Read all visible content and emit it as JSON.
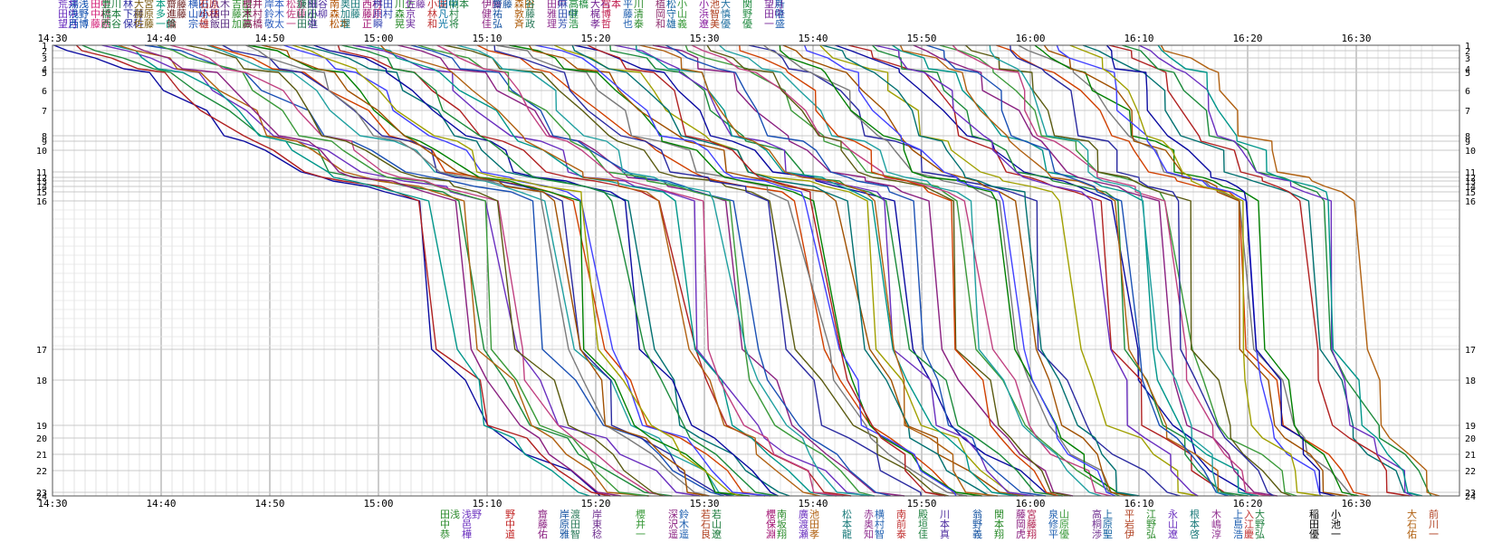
{
  "chart_data": {
    "type": "line",
    "title": "",
    "xlabel": "",
    "ylabel": "",
    "x_range": [
      "14:30",
      "16:37"
    ],
    "y_range": [
      1,
      24
    ],
    "grid": true,
    "x_ticks": [
      "14:30",
      "14:40",
      "14:50",
      "15:00",
      "15:10",
      "15:20",
      "15:30",
      "15:40",
      "15:50",
      "16:00",
      "16:10",
      "16:20",
      "16:30"
    ],
    "checkpoints": [
      "1",
      "2",
      "3",
      "4",
      "5",
      "6",
      "7",
      "8",
      "9",
      "10",
      "11",
      "12",
      "13",
      "14",
      "15",
      "16",
      "17",
      "18",
      "19",
      "20",
      "21",
      "22",
      "23",
      "24"
    ],
    "checkpoint_labels": [
      "1",
      "2",
      "3",
      "4",
      "5",
      "6",
      "7",
      "8",
      "9",
      "10",
      "11",
      "12",
      "13",
      "14",
      "15",
      "16",
      "17",
      "18",
      "19",
      "20",
      "21",
      "22",
      "23",
      "24"
    ],
    "top_names": [
      {
        "time": "14:30",
        "lines": [
          "荒井",
          "田中",
          "望月"
        ],
        "color": "#6a2fbf"
      },
      {
        "time": "14:31",
        "lines": [
          "湯浅",
          "浅野",
          "西博"
        ],
        "color": "#0044aa"
      },
      {
        "time": "14:33",
        "lines": [
          "田中",
          "中村",
          "藤原"
        ],
        "color": "#d4237a"
      },
      {
        "time": "14:34",
        "lines": [
          "豊川",
          "橋本",
          "西谷"
        ],
        "color": "#1a7a3a"
      },
      {
        "time": "14:36",
        "lines": [
          "林",
          "下村",
          "保科"
        ],
        "color": "#2a2aa0"
      },
      {
        "time": "14:37",
        "lines": [
          "大宮",
          "藤原",
          "佐藤"
        ],
        "color": "#7a5a10"
      },
      {
        "time": "14:39",
        "lines": [
          "本",
          "多",
          "一郎"
        ],
        "color": "#00967a"
      },
      {
        "time": "14:40",
        "lines": [
          "齋藤",
          "進藤",
          "倫"
        ],
        "color": "#6b1f1f"
      },
      {
        "time": "14:42",
        "lines": [
          "横田",
          "山崎",
          "宗一"
        ],
        "color": "#1a50b4"
      },
      {
        "time": "14:43",
        "lines": [
          "石原",
          "小林",
          "雄"
        ],
        "color": "#b02020"
      },
      {
        "time": "14:44",
        "lines": [
          "八木",
          "田中",
          "飯田"
        ],
        "color": "#5a2d82"
      },
      {
        "time": "14:46",
        "lines": [
          "吉田",
          "藤澤",
          "加藤"
        ],
        "color": "#2f8f2f"
      },
      {
        "time": "14:47",
        "lines": [
          "櫻井",
          "木村",
          "高橋"
        ],
        "color": "#8a1a5a"
      },
      {
        "time": "14:49",
        "lines": [
          "岸本",
          "鈴木",
          "敬太"
        ],
        "color": "#3060c0"
      },
      {
        "time": "14:51",
        "lines": [
          "松永",
          "佐藤",
          "一"
        ],
        "color": "#c04080"
      },
      {
        "time": "14:52",
        "lines": [
          "鎌田",
          "山田",
          "田中"
        ],
        "color": "#207050"
      },
      {
        "time": "14:53",
        "lines": [
          "細谷",
          "小柳",
          "進"
        ],
        "color": "#5030a0"
      },
      {
        "time": "14:55",
        "lines": [
          "南",
          "森",
          "松本"
        ],
        "color": "#b05000"
      },
      {
        "time": "14:56",
        "lines": [
          "奥田",
          "加藤",
          "理"
        ],
        "color": "#1a7a7a"
      },
      {
        "time": "14:58",
        "lines": [
          "西村",
          "藤原",
          "正"
        ],
        "color": "#a01070"
      },
      {
        "time": "14:59",
        "lines": [
          "桝田",
          "川村",
          "瞬"
        ],
        "color": "#3040b0"
      },
      {
        "time": "15:01",
        "lines": [
          "川上",
          "森",
          "晃"
        ],
        "color": "#2a8a2a"
      },
      {
        "time": "15:02",
        "lines": [
          "佐藤",
          "京",
          "実"
        ],
        "color": "#7030a0"
      },
      {
        "time": "15:04",
        "lines": [
          "小堀",
          "林",
          "和"
        ],
        "color": "#c03030"
      },
      {
        "time": "15:05",
        "lines": [
          "田中",
          "凡",
          "光"
        ],
        "color": "#0070a0"
      },
      {
        "time": "15:06",
        "lines": [
          "岡本",
          "村",
          "将"
        ],
        "color": "#208040"
      },
      {
        "time": "15:09",
        "lines": [
          "伊藤",
          "健",
          "佳"
        ],
        "color": "#8a2080"
      },
      {
        "time": "15:10",
        "lines": [
          "齋藤",
          "祐",
          "弘"
        ],
        "color": "#1050a0"
      },
      {
        "time": "15:12",
        "lines": [
          "森田",
          "敦",
          "斉"
        ],
        "color": "#b06010"
      },
      {
        "time": "15:13",
        "lines": [
          "谷",
          "藤",
          "政"
        ],
        "color": "#2a7a5a"
      },
      {
        "time": "15:15",
        "lines": [
          "田中",
          "雅",
          "理"
        ],
        "color": "#903090"
      },
      {
        "time": "15:16",
        "lines": [
          "麻",
          "田中",
          "芳"
        ],
        "color": "#3050b0"
      },
      {
        "time": "15:17",
        "lines": [
          "高橋",
          "健",
          "浩"
        ],
        "color": "#1a8a3a"
      },
      {
        "time": "15:19",
        "lines": [
          "大石",
          "梶",
          "孝"
        ],
        "color": "#702090"
      },
      {
        "time": "15:20",
        "lines": [
          "宮本",
          "博",
          "哲"
        ],
        "color": "#c02050"
      },
      {
        "time": "15:22",
        "lines": [
          "平",
          "藤",
          "也"
        ],
        "color": "#2060b0"
      },
      {
        "time": "15:23",
        "lines": [
          "川",
          "清",
          "泰"
        ],
        "color": "#2a8a2a"
      },
      {
        "time": "15:25",
        "lines": [
          "植",
          "岡",
          "和"
        ],
        "color": "#903070"
      },
      {
        "time": "15:26",
        "lines": [
          "松",
          "守",
          "雄"
        ],
        "color": "#1060a0"
      },
      {
        "time": "15:27",
        "lines": [
          "小",
          "山",
          "義"
        ],
        "color": "#3a9a3a"
      },
      {
        "time": "15:29",
        "lines": [
          "小",
          "浜",
          "遼"
        ],
        "color": "#8a20a0"
      },
      {
        "time": "15:30",
        "lines": [
          "池",
          "智",
          "美"
        ],
        "color": "#b04020"
      },
      {
        "time": "15:31",
        "lines": [
          "大",
          "慎",
          "優"
        ],
        "color": "#2070a0"
      },
      {
        "time": "15:33",
        "lines": [
          "関",
          "野",
          "優"
        ],
        "color": "#208a40"
      },
      {
        "time": "15:35",
        "lines": [
          "望月",
          "田中",
          "一"
        ],
        "color": "#7a2a9a"
      },
      {
        "time": "15:36",
        "lines": [
          "新",
          "隆",
          "盛"
        ],
        "color": "#2060b0"
      }
    ],
    "bottom_names": [
      {
        "time": "15:06",
        "lines": [
          "田浅",
          "中",
          "恭"
        ],
        "color": "#2a8a2a"
      },
      {
        "time": "15:08",
        "lines": [
          "浅野",
          "邑",
          "樺"
        ],
        "color": "#6a2fbf"
      },
      {
        "time": "15:12",
        "lines": [
          "野",
          "中",
          "道"
        ],
        "color": "#c02020"
      },
      {
        "time": "15:15",
        "lines": [
          "齋",
          "藤",
          "佑"
        ],
        "color": "#8a2080"
      },
      {
        "time": "15:17",
        "lines": [
          "岸",
          "原",
          "雅"
        ],
        "color": "#1050a0"
      },
      {
        "time": "15:18",
        "lines": [
          "渡",
          "田",
          "智"
        ],
        "color": "#2a7a5a"
      },
      {
        "time": "15:20",
        "lines": [
          "岸",
          "東",
          "稔"
        ],
        "color": "#703090"
      },
      {
        "time": "15:24",
        "lines": [
          "櫻",
          "井",
          "一"
        ],
        "color": "#3a9a3a"
      },
      {
        "time": "15:27",
        "lines": [
          "深",
          "沢",
          "遥"
        ],
        "color": "#8a2080"
      },
      {
        "time": "15:28",
        "lines": [
          "鈴",
          "木",
          "遥"
        ],
        "color": "#2060b0"
      },
      {
        "time": "15:30",
        "lines": [
          "若",
          "石",
          "良"
        ],
        "color": "#b04020"
      },
      {
        "time": "15:31",
        "lines": [
          "若",
          "山",
          "遼"
        ],
        "color": "#1a7a3a"
      },
      {
        "time": "15:36",
        "lines": [
          "櫻",
          "保",
          "淵"
        ],
        "color": "#a01070"
      },
      {
        "time": "15:37",
        "lines": [
          "南",
          "坂",
          "翔"
        ],
        "color": "#2a8a2a"
      },
      {
        "time": "15:39",
        "lines": [
          "廣",
          "渡",
          "瀬"
        ],
        "color": "#6a2fbf"
      },
      {
        "time": "15:40",
        "lines": [
          "池",
          "田",
          "孝"
        ],
        "color": "#b06010"
      },
      {
        "time": "15:43",
        "lines": [
          "松",
          "本",
          "龍"
        ],
        "color": "#1a7a7a"
      },
      {
        "time": "15:45",
        "lines": [
          "赤",
          "奥",
          "知"
        ],
        "color": "#903090"
      },
      {
        "time": "15:46",
        "lines": [
          "横",
          "村",
          "智"
        ],
        "color": "#2060b0"
      },
      {
        "time": "15:48",
        "lines": [
          "南",
          "前",
          "泰"
        ],
        "color": "#c03030"
      },
      {
        "time": "15:50",
        "lines": [
          "殿",
          "垣",
          "佳"
        ],
        "color": "#208040"
      },
      {
        "time": "15:52",
        "lines": [
          "川",
          "本",
          "真"
        ],
        "color": "#5030a0"
      },
      {
        "time": "15:55",
        "lines": [
          "翁",
          "野",
          "義"
        ],
        "color": "#1050a0"
      },
      {
        "time": "15:57",
        "lines": [
          "関",
          "本",
          "翔"
        ],
        "color": "#2a8a2a"
      },
      {
        "time": "15:59",
        "lines": [
          "藤",
          "岡",
          "虎"
        ],
        "color": "#8a2080"
      },
      {
        "time": "16:00",
        "lines": [
          "宮",
          "藤",
          "翔"
        ],
        "color": "#b02050"
      },
      {
        "time": "16:02",
        "lines": [
          "泉",
          "修",
          "平"
        ],
        "color": "#2060b0"
      },
      {
        "time": "16:03",
        "lines": [
          "山",
          "原",
          "優"
        ],
        "color": "#3a9a3a"
      },
      {
        "time": "16:06",
        "lines": [
          "高",
          "桐",
          "渉"
        ],
        "color": "#703090"
      },
      {
        "time": "16:07",
        "lines": [
          "上",
          "原",
          "聖"
        ],
        "color": "#1060a0"
      },
      {
        "time": "16:09",
        "lines": [
          "平",
          "岩",
          "伊"
        ],
        "color": "#b04020"
      },
      {
        "time": "16:11",
        "lines": [
          "江",
          "野",
          "弘"
        ],
        "color": "#2a8a2a"
      },
      {
        "time": "16:13",
        "lines": [
          "永",
          "山",
          "遼"
        ],
        "color": "#6a2fbf"
      },
      {
        "time": "16:15",
        "lines": [
          "根",
          "本",
          "啓"
        ],
        "color": "#1a7a7a"
      },
      {
        "time": "16:17",
        "lines": [
          "木",
          "嶋",
          "淳"
        ],
        "color": "#903090"
      },
      {
        "time": "16:19",
        "lines": [
          "上",
          "島",
          "浩"
        ],
        "color": "#2060b0"
      },
      {
        "time": "16:20",
        "lines": [
          "入",
          "江",
          "慶"
        ],
        "color": "#c03030"
      },
      {
        "time": "16:21",
        "lines": [
          "大",
          "野",
          "弘"
        ],
        "color": "#208040"
      },
      {
        "time": "16:26",
        "lines": [
          "稲",
          "田",
          "優"
        ],
        "color": "#000000"
      },
      {
        "time": "16:28",
        "lines": [
          "小",
          "池",
          "一"
        ],
        "color": "#000000"
      },
      {
        "time": "16:35",
        "lines": [
          "大",
          "石",
          "佑"
        ],
        "color": "#b06010"
      },
      {
        "time": "16:37",
        "lines": [
          "前",
          "川",
          "一"
        ],
        "color": "#b04020"
      }
    ],
    "series_note_colors": [
      "#0a0aa0",
      "#b02020",
      "#1a8a3a",
      "#6a2fbf",
      "#00968a",
      "#b06010",
      "#8a2080",
      "#1a50b4",
      "#3a9a3a",
      "#c04080",
      "#5a5a10",
      "#20a0a0",
      "#d04000",
      "#2a2aa0",
      "#7a7a7a",
      "#008000",
      "#a05000",
      "#4040ff",
      "#a0a000",
      "#007070"
    ],
    "series_count": 86,
    "start_time": "14:30",
    "start_spacing_min": 1.2,
    "finish_first": "15:08",
    "finish_last": "16:37"
  }
}
